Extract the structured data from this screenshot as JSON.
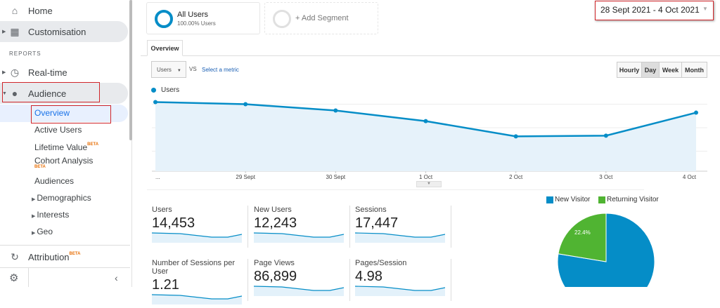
{
  "sidebar": {
    "home": "Home",
    "customisation": "Customisation",
    "reports_heading": "REPORTS",
    "realtime": "Real-time",
    "audience": "Audience",
    "sub": {
      "overview": "Overview",
      "active_users": "Active Users",
      "lifetime_value": "Lifetime Value",
      "cohort": "Cohort Analysis",
      "audiences": "Audiences",
      "demographics": "Demographics",
      "interests": "Interests",
      "geo": "Geo"
    },
    "attribution": "Attribution",
    "beta": "BETA"
  },
  "segments": {
    "all_users": "All Users",
    "all_users_pct": "100.00% Users",
    "add": "+ Add Segment"
  },
  "date_range": "28 Sept 2021 - 4 Oct 2021",
  "tabs": {
    "overview": "Overview"
  },
  "controls": {
    "metric": "Users",
    "vs": "VS",
    "select_metric": "Select a metric",
    "hourly": "Hourly",
    "day": "Day",
    "week": "Week",
    "month": "Month",
    "selected_granularity": "Day"
  },
  "colors": {
    "accent": "#058dc7",
    "green": "#50b432",
    "highlight": "#d0252a"
  },
  "chart_data": [
    {
      "type": "area",
      "legend": "Users",
      "categories": [
        "...",
        "29 Sept",
        "30 Sept",
        "1 Oct",
        "2 Oct",
        "3 Oct",
        "4 Oct"
      ],
      "values": [
        3090,
        3000,
        2730,
        2280,
        1630,
        1660,
        2640
      ],
      "y_ticks": [
        "1,000",
        "2,000",
        "3,000"
      ],
      "ylim": [
        0,
        3300
      ],
      "grid": true
    },
    {
      "type": "pie",
      "legend_position": "top",
      "series": [
        {
          "name": "New Visitor",
          "value": 77.6
        },
        {
          "name": "Returning Visitor",
          "value": 22.4
        }
      ],
      "labels": [
        "22.4%"
      ]
    }
  ],
  "metrics": [
    {
      "title": "Users",
      "value": "14,453"
    },
    {
      "title": "New Users",
      "value": "12,243"
    },
    {
      "title": "Sessions",
      "value": "17,447"
    },
    {
      "title": "Number of Sessions per User",
      "value": "1.21"
    },
    {
      "title": "Page Views",
      "value": "86,899"
    },
    {
      "title": "Pages/Session",
      "value": "4.98"
    }
  ]
}
